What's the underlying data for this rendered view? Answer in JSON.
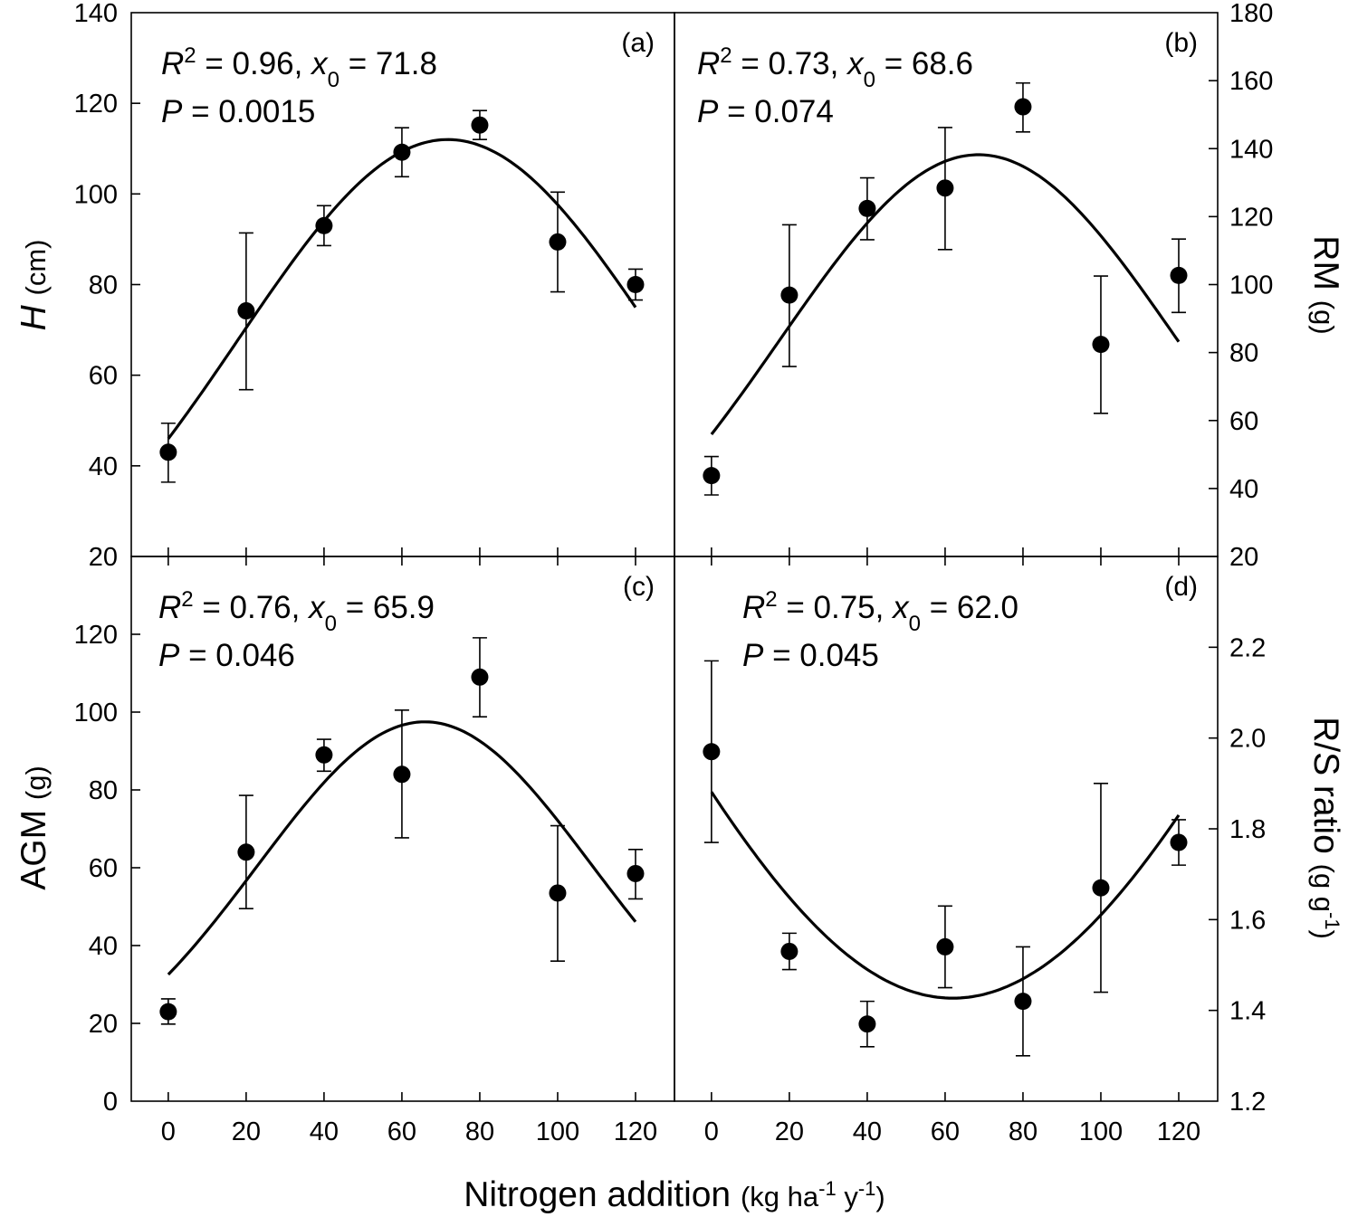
{
  "chart_data": {
    "type": "scatter",
    "xlabel": "Nitrogen addition",
    "xlabel_unit": "(kg ha^-1 y^-1)",
    "x": [
      0,
      20,
      40,
      60,
      80,
      100,
      120
    ],
    "xtick_labels": [
      "0",
      "20",
      "40",
      "60",
      "80",
      "100",
      "120"
    ],
    "xlim": [
      -9.5,
      130
    ],
    "panels": [
      {
        "id": "a",
        "panel_label": "(a)",
        "ylabel_var": "H",
        "ylabel_var_italic": true,
        "ylabel_unit": "(cm)",
        "axis_side": "left",
        "ylim": [
          20,
          140
        ],
        "ytick_labels": [
          "20",
          "40",
          "60",
          "80",
          "100",
          "120",
          "140"
        ],
        "annotation": {
          "r2": "0.96",
          "x0": "71.8",
          "p": "0.0015"
        },
        "means": [
          43,
          74.2,
          93,
          109.2,
          115.2,
          89.4,
          80
        ],
        "err_upper": [
          49.4,
          91.4,
          97.4,
          114.6,
          118.4,
          100.4,
          83.4
        ],
        "err_lower": [
          36.4,
          56.8,
          88.6,
          103.8,
          112,
          78.4,
          76.6
        ],
        "fit": {
          "model": "gaussian",
          "x0": 71.8,
          "a": 112,
          "b": 53.8,
          "y0": 0
        }
      },
      {
        "id": "b",
        "panel_label": "(b)",
        "ylabel_var": "RM",
        "ylabel_var_italic": false,
        "ylabel_unit": "(g)",
        "axis_side": "right",
        "ylim": [
          20,
          180
        ],
        "ytick_labels": [
          "20",
          "40",
          "60",
          "80",
          "100",
          "120",
          "140",
          "160",
          "180"
        ],
        "annotation": {
          "r2": "0.73",
          "x0": "68.6",
          "p": "0.074"
        },
        "means": [
          43.8,
          96.9,
          122.4,
          128.4,
          152.3,
          82.4,
          102.7
        ],
        "err_upper": [
          49.4,
          117.6,
          131.4,
          146.2,
          159.3,
          102.5,
          113.4
        ],
        "err_lower": [
          38.1,
          75.9,
          113.2,
          110.3,
          144.9,
          62.1,
          91.8
        ],
        "fit": {
          "model": "gaussian",
          "x0": 68.6,
          "a": 138.2,
          "b": 51,
          "y0": 0
        }
      },
      {
        "id": "c",
        "panel_label": "(c)",
        "ylabel_var": "AGM",
        "ylabel_var_italic": false,
        "ylabel_unit": "(g)",
        "axis_side": "left",
        "ylim": [
          0,
          140
        ],
        "ytick_labels": [
          "0",
          "20",
          "40",
          "60",
          "80",
          "100",
          "120"
        ],
        "annotation": {
          "r2": "0.76",
          "x0": "65.9",
          "p": "0.046"
        },
        "means": [
          23,
          64,
          89,
          84,
          109,
          53.5,
          58.5
        ],
        "err_upper": [
          26.3,
          78.6,
          93,
          100.5,
          119.1,
          70.8,
          64.7
        ],
        "err_lower": [
          19.8,
          49.5,
          84.8,
          67.7,
          98.8,
          36,
          52
        ],
        "fit": {
          "model": "gaussian",
          "x0": 65.9,
          "a": 94,
          "b": 43,
          "y0": 3.5
        }
      },
      {
        "id": "d",
        "panel_label": "(d)",
        "ylabel_var": "R/S ratio",
        "ylabel_var_italic": false,
        "ylabel_unit": "(g g^-1)",
        "axis_side": "right",
        "ylim": [
          1.2,
          2.4
        ],
        "ytick_labels": [
          "1.2",
          "1.4",
          "1.6",
          "1.8",
          "2.0",
          "2.2"
        ],
        "annotation": {
          "r2": "0.75",
          "x0": "62.0",
          "p": "0.045"
        },
        "means": [
          1.97,
          1.53,
          1.37,
          1.54,
          1.42,
          1.67,
          1.77
        ],
        "err_upper": [
          2.17,
          1.57,
          1.42,
          1.63,
          1.54,
          1.9,
          1.82
        ],
        "err_lower": [
          1.77,
          1.49,
          1.32,
          1.45,
          1.3,
          1.44,
          1.72
        ],
        "fit": {
          "model": "gaussian",
          "x0": 62.0,
          "a": -2.15,
          "b": 90,
          "y0": 3.577
        }
      }
    ],
    "stat_labels": {
      "r2_symbol": "R",
      "r2_power": "2",
      "x0_symbol": "x",
      "x0_sub": "0",
      "p_symbol": "P"
    },
    "marker_color": "#000000",
    "line_color": "#000000",
    "grid": false
  }
}
